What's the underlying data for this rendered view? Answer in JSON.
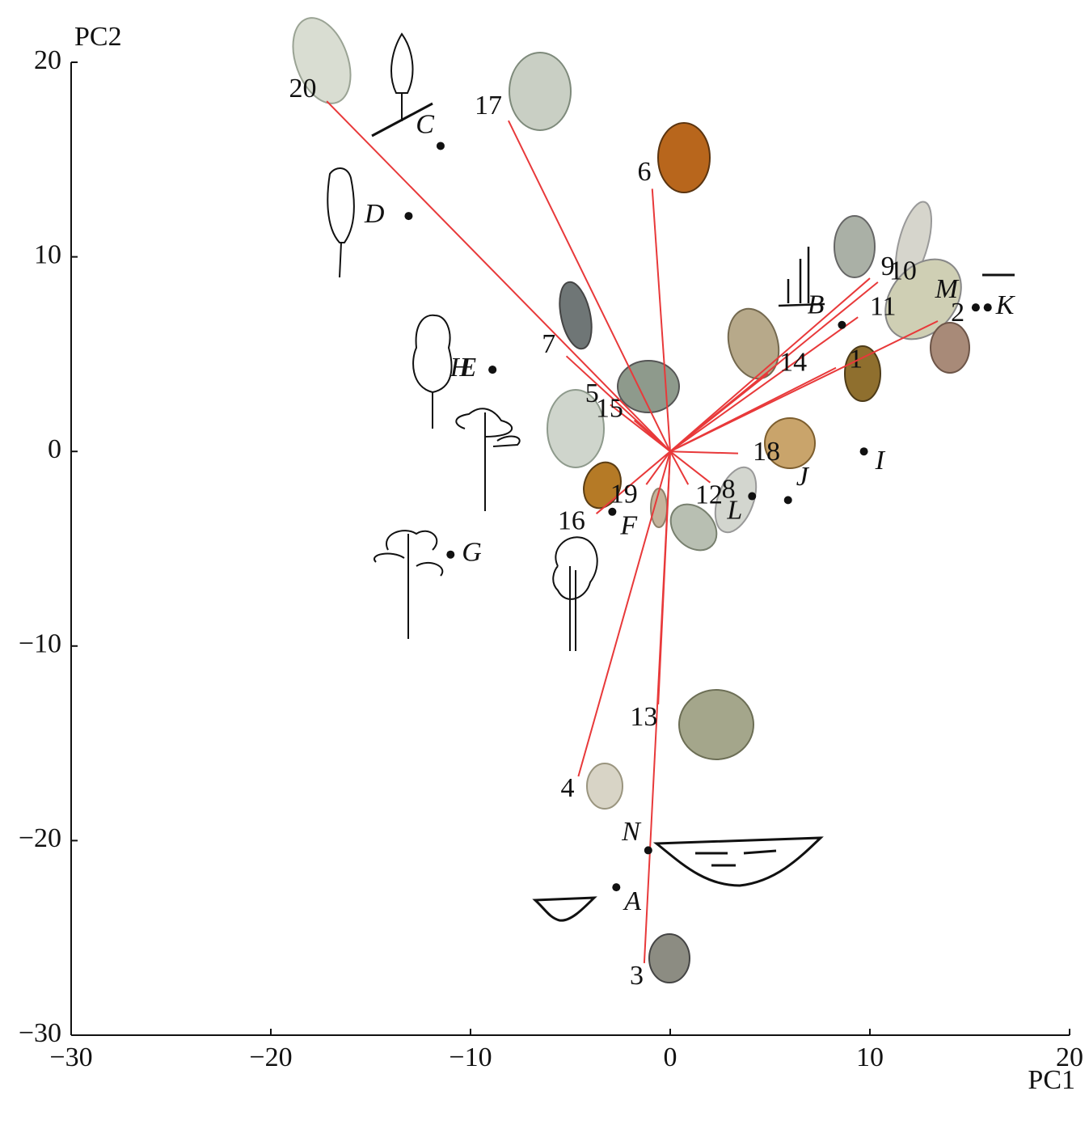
{
  "chart_data": {
    "type": "biplot",
    "xlabel": "PC1",
    "ylabel": "PC2",
    "xlim": [
      -30,
      20
    ],
    "ylim": [
      -30,
      20
    ],
    "xticks": [
      {
        "value": -30,
        "label": "−30"
      },
      {
        "value": -20,
        "label": "−20"
      },
      {
        "value": -10,
        "label": "−10"
      },
      0,
      10,
      20
    ],
    "yticks": [
      {
        "value": -30,
        "label": "−30"
      },
      {
        "value": -20,
        "label": "−20"
      },
      {
        "value": -10,
        "label": "−10"
      },
      0,
      10,
      20
    ],
    "vector_color": "#e8393a",
    "vectors": [
      {
        "name": "1",
        "x": 8.3,
        "y": 4.3
      },
      {
        "name": "2",
        "x": 13.4,
        "y": 6.7
      },
      {
        "name": "3",
        "x": -1.3,
        "y": -26.3
      },
      {
        "name": "4",
        "x": -4.6,
        "y": -16.7
      },
      {
        "name": "5",
        "x": -3.0,
        "y": 2.4
      },
      {
        "name": "6",
        "x": -0.9,
        "y": 13.5
      },
      {
        "name": "7",
        "x": -5.2,
        "y": 4.9
      },
      {
        "name": "8",
        "x": 2.0,
        "y": -1.6
      },
      {
        "name": "9",
        "x": 10.0,
        "y": 8.9
      },
      {
        "name": "10",
        "x": 10.4,
        "y": 8.7
      },
      {
        "name": "11",
        "x": 9.4,
        "y": 6.9
      },
      {
        "name": "12",
        "x": 0.9,
        "y": -1.7
      },
      {
        "name": "13",
        "x": -0.6,
        "y": -13.0
      },
      {
        "name": "14",
        "x": 4.9,
        "y": 4.0
      },
      {
        "name": "15",
        "x": -1.8,
        "y": 1.6
      },
      {
        "name": "16",
        "x": -3.7,
        "y": -3.2
      },
      {
        "name": "17",
        "x": -8.1,
        "y": 17.0
      },
      {
        "name": "18",
        "x": 3.4,
        "y": -0.1
      },
      {
        "name": "19",
        "x": -1.2,
        "y": -1.7
      },
      {
        "name": "20",
        "x": -17.2,
        "y": 18.0
      }
    ],
    "points": [
      {
        "name": "A",
        "x": -2.7,
        "y": -22.4
      },
      {
        "name": "B",
        "x": 8.6,
        "y": 6.5
      },
      {
        "name": "C",
        "x": -11.5,
        "y": 15.7
      },
      {
        "name": "D",
        "x": -13.1,
        "y": 12.1
      },
      {
        "name": "E",
        "x": -8.9,
        "y": 4.2
      },
      {
        "name": "F",
        "x": -2.9,
        "y": -3.1
      },
      {
        "name": "G",
        "x": -11.0,
        "y": -5.3
      },
      {
        "name": "H",
        "x": -8.9,
        "y": 4.2
      },
      {
        "name": "I",
        "x": 9.7,
        "y": 0.0
      },
      {
        "name": "J",
        "x": 5.9,
        "y": -2.5
      },
      {
        "name": "K",
        "x": 15.9,
        "y": 7.4
      },
      {
        "name": "L",
        "x": 4.1,
        "y": -2.3
      },
      {
        "name": "M",
        "x": 15.3,
        "y": 7.4
      },
      {
        "name": "N",
        "x": -1.1,
        "y": -20.5
      }
    ]
  }
}
